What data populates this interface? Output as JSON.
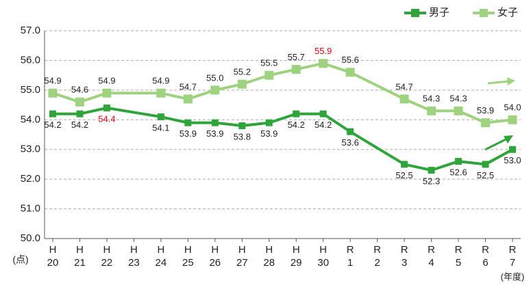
{
  "chart_data": {
    "type": "line",
    "categories": [
      [
        "H",
        "20"
      ],
      [
        "H",
        "21"
      ],
      [
        "H",
        "22"
      ],
      [
        "H",
        "23"
      ],
      [
        "H",
        "24"
      ],
      [
        "H",
        "25"
      ],
      [
        "H",
        "26"
      ],
      [
        "H",
        "27"
      ],
      [
        "H",
        "28"
      ],
      [
        "H",
        "29"
      ],
      [
        "H",
        "30"
      ],
      [
        "R",
        "1"
      ],
      [
        "R",
        "2"
      ],
      [
        "R",
        "3"
      ],
      [
        "R",
        "4"
      ],
      [
        "R",
        "5"
      ],
      [
        "R",
        "6"
      ],
      [
        "R",
        "7"
      ]
    ],
    "y_label": "(点)",
    "x_label": "(年度)",
    "ylim": [
      50,
      57
    ],
    "yticks": [
      {
        "value": 50,
        "label": "50.0"
      },
      {
        "value": 51,
        "label": "51.0"
      },
      {
        "value": 52,
        "label": "52.0"
      },
      {
        "value": 53,
        "label": "53.0"
      },
      {
        "value": 54,
        "label": "54.0"
      },
      {
        "value": 55,
        "label": "55.0"
      },
      {
        "value": 56,
        "label": "56.0"
      },
      {
        "value": 57,
        "label": "57.0"
      }
    ],
    "grid": true,
    "connect_gaps": true,
    "legend": "top-right",
    "highlight_color": "#e60012",
    "series": [
      {
        "name": "男子",
        "color": "#2ea43a",
        "label_side": "below",
        "highlight": [
          2
        ],
        "values": [
          54.2,
          54.2,
          54.4,
          null,
          54.1,
          53.9,
          53.9,
          53.8,
          53.9,
          54.2,
          54.2,
          53.6,
          null,
          52.5,
          52.3,
          52.6,
          52.5,
          53.0
        ],
        "value_labels": [
          "54.2",
          "54.2",
          "54.4",
          null,
          "54.1",
          "53.9",
          "53.9",
          "53.8",
          "53.9",
          "54.2",
          "54.2",
          "53.6",
          null,
          "52.5",
          "52.3",
          "52.6",
          "52.5",
          "53.0"
        ]
      },
      {
        "name": "女子",
        "color": "#9fd27f",
        "label_side": "above",
        "highlight": [
          10
        ],
        "values": [
          54.9,
          54.6,
          54.9,
          null,
          54.9,
          54.7,
          55.0,
          55.2,
          55.5,
          55.7,
          55.9,
          55.6,
          null,
          54.7,
          54.3,
          54.3,
          53.9,
          54.0
        ],
        "value_labels": [
          "54.9",
          "54.6",
          "54.9",
          null,
          "54.9",
          "54.7",
          "55.0",
          "55.2",
          "55.5",
          "55.7",
          "55.9",
          "55.6",
          null,
          "54.7",
          "54.3",
          "54.3",
          "53.9",
          "54.0"
        ]
      }
    ]
  }
}
